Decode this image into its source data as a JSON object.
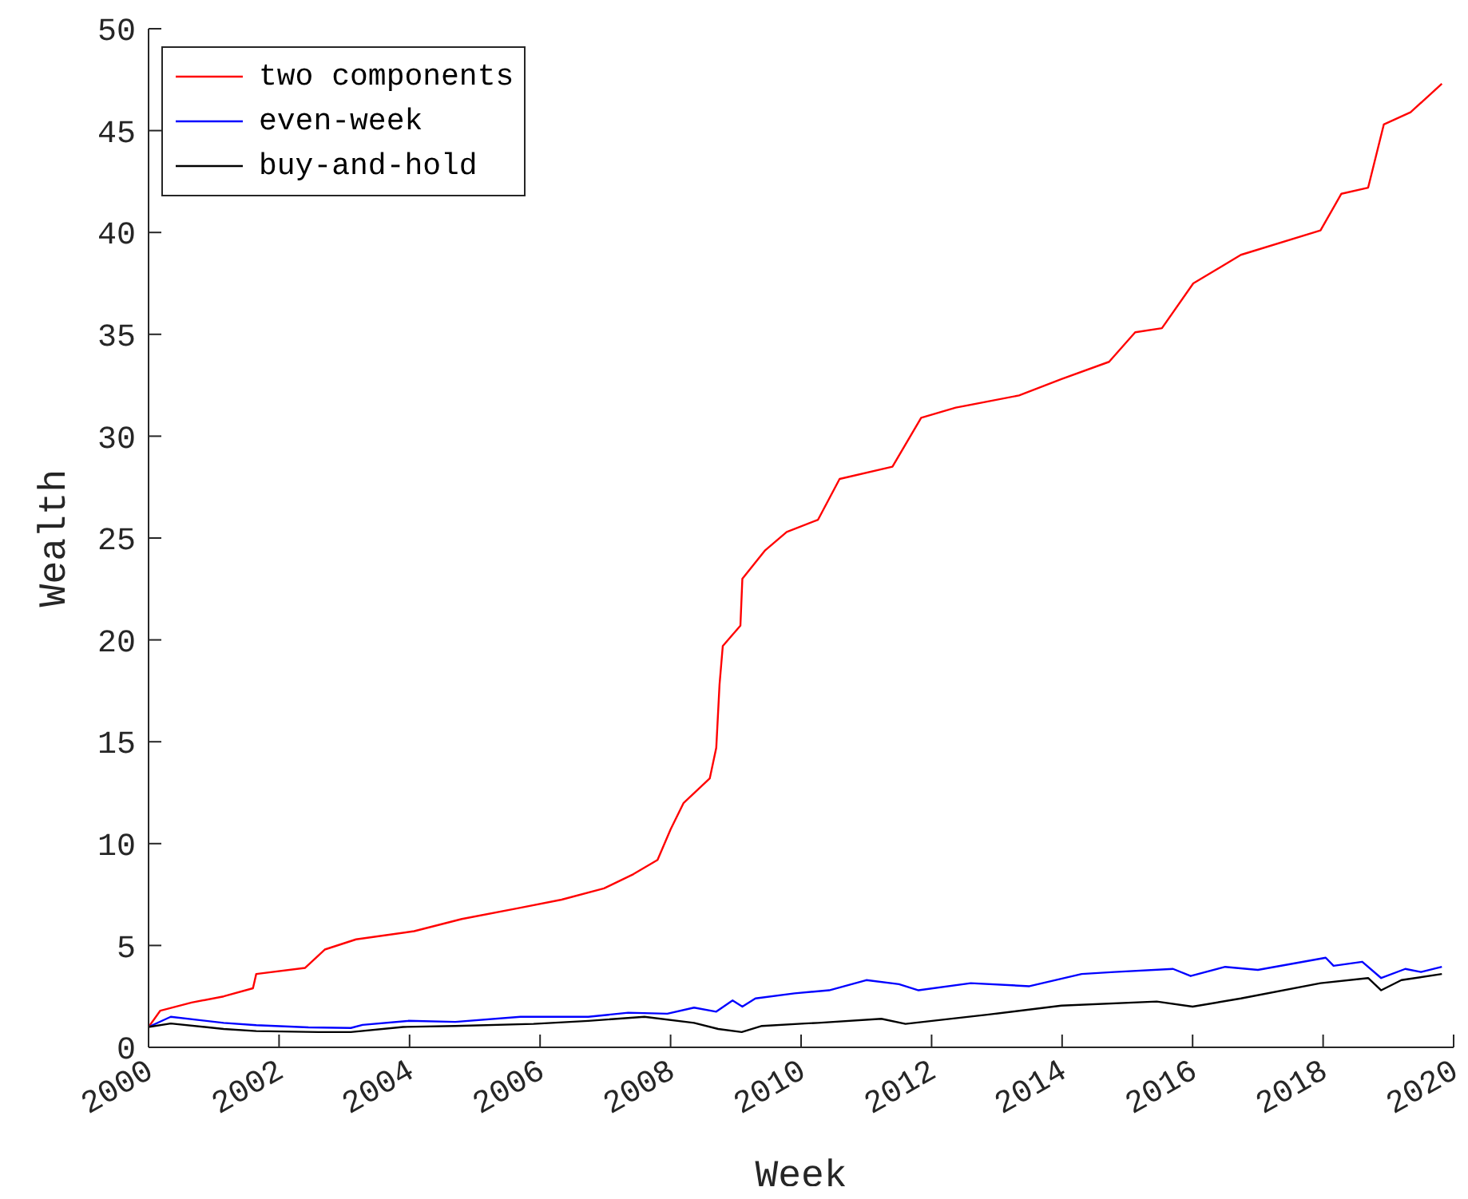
{
  "chart_data": {
    "type": "line",
    "xlabel": "Week",
    "ylabel": "Wealth",
    "xlim": [
      2000,
      2020
    ],
    "xticks": [
      2000,
      2002,
      2004,
      2006,
      2008,
      2010,
      2012,
      2014,
      2016,
      2018,
      2020
    ],
    "ylim": [
      0,
      50
    ],
    "yticks": [
      0,
      5,
      10,
      15,
      20,
      25,
      30,
      35,
      40,
      45,
      50
    ],
    "grid": false,
    "legend": "top left",
    "marker": "none",
    "line_style": "solid",
    "series": [
      {
        "name": "two components",
        "color": "#ff0000",
        "x": [
          2000,
          2000.18,
          2000.66,
          2001.15,
          2001.6,
          2001.65,
          2002.4,
          2002.7,
          2003.18,
          2004.07,
          2004.8,
          2005.7,
          2006.33,
          2006.98,
          2007.43,
          2007.8,
          2008.0,
          2008.2,
          2008.6,
          2008.7,
          2008.75,
          2008.8,
          2009.07,
          2009.1,
          2009.45,
          2009.78,
          2010.26,
          2010.59,
          2011.4,
          2011.84,
          2012.37,
          2013.34,
          2013.99,
          2014.72,
          2015.12,
          2015.53,
          2016.01,
          2016.74,
          2017.96,
          2018.28,
          2018.69,
          2018.93,
          2019.34,
          2019.82
        ],
        "values": [
          1,
          1.8,
          2.2,
          2.5,
          2.9,
          3.6,
          3.9,
          4.8,
          5.3,
          5.7,
          6.3,
          6.85,
          7.25,
          7.8,
          8.5,
          9.2,
          10.7,
          12,
          13.2,
          14.7,
          17.8,
          19.7,
          20.7,
          23,
          24.4,
          25.3,
          25.9,
          27.9,
          28.5,
          30.9,
          31.4,
          32,
          32.8,
          33.65,
          35.1,
          35.3,
          37.5,
          38.9,
          40.1,
          41.9,
          42.2,
          45.3,
          45.9,
          47.3
        ]
      },
      {
        "name": "even-week",
        "color": "#0000ff",
        "x": [
          2000,
          2000.34,
          2001.15,
          2001.65,
          2002.45,
          2003.1,
          2003.28,
          2003.98,
          2004.7,
          2005.7,
          2006.74,
          2007.35,
          2007.95,
          2008.36,
          2008.7,
          2008.95,
          2009.1,
          2009.3,
          2009.9,
          2010.43,
          2011.0,
          2011.5,
          2011.8,
          2012.6,
          2013.5,
          2014.3,
          2014.8,
          2015.7,
          2015.97,
          2016.5,
          2017.0,
          2018.04,
          2018.16,
          2018.6,
          2018.89,
          2019.26,
          2019.5,
          2019.82
        ],
        "values": [
          1,
          1.5,
          1.2,
          1.09,
          0.98,
          0.95,
          1.1,
          1.3,
          1.25,
          1.5,
          1.5,
          1.7,
          1.65,
          1.95,
          1.75,
          2.3,
          2.0,
          2.4,
          2.65,
          2.8,
          3.3,
          3.1,
          2.8,
          3.15,
          3.0,
          3.6,
          3.7,
          3.85,
          3.5,
          3.95,
          3.8,
          4.4,
          4.0,
          4.2,
          3.4,
          3.85,
          3.7,
          3.95
        ]
      },
      {
        "name": "buy-and-hold",
        "color": "#000000",
        "x": [
          2000,
          2000.34,
          2001.15,
          2001.65,
          2002.6,
          2003.1,
          2003.9,
          2004.7,
          2005.9,
          2006.74,
          2007.6,
          2008.36,
          2008.73,
          2009.09,
          2009.4,
          2010.06,
          2010.26,
          2011.23,
          2011.6,
          2012.85,
          2013.99,
          2015.45,
          2016.0,
          2016.74,
          2017.96,
          2018.69,
          2018.89,
          2019.2,
          2019.82
        ],
        "values": [
          1,
          1.17,
          0.9,
          0.8,
          0.75,
          0.75,
          1.0,
          1.05,
          1.15,
          1.3,
          1.5,
          1.2,
          0.9,
          0.75,
          1.05,
          1.17,
          1.2,
          1.4,
          1.15,
          1.6,
          2.05,
          2.25,
          2.0,
          2.4,
          3.15,
          3.4,
          2.8,
          3.3,
          3.6
        ]
      }
    ]
  }
}
